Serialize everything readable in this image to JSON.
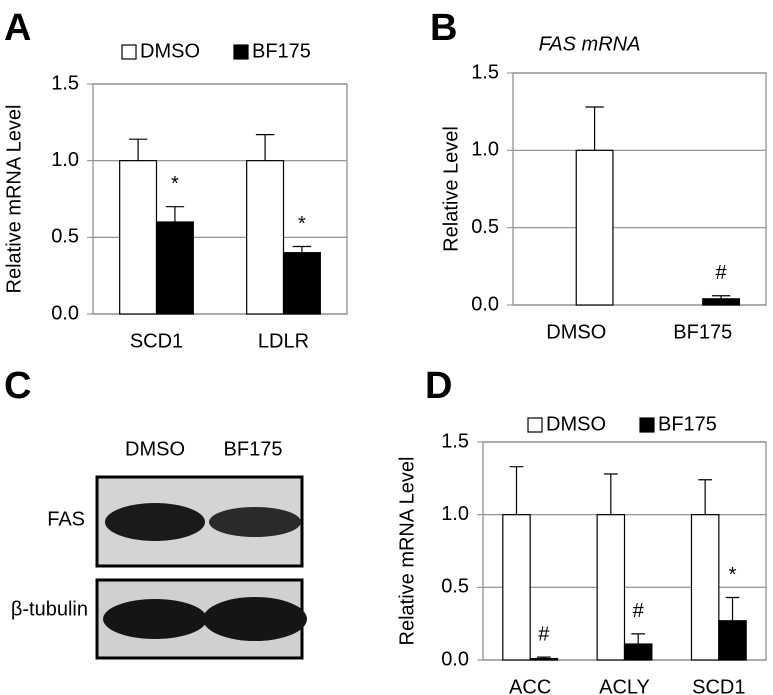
{
  "chart_data": [
    {
      "type": "bar",
      "panel_label": "A",
      "y_label": "Relative mRNA Level",
      "categories": [
        "SCD1",
        "LDLR"
      ],
      "series": [
        {
          "name": "DMSO",
          "color": "#ffffff",
          "values": [
            1.0,
            1.0
          ],
          "errors": [
            0.14,
            0.17
          ]
        },
        {
          "name": "BF175",
          "color": "#000000",
          "values": [
            0.6,
            0.4
          ],
          "errors": [
            0.1,
            0.04
          ],
          "annotations": [
            "*",
            "*"
          ]
        }
      ],
      "ylim": [
        0,
        1.5
      ],
      "yticks": [
        {
          "value": 0,
          "label": "0.0"
        },
        {
          "value": 0.5,
          "label": "0.5"
        },
        {
          "value": 1,
          "label": "1.0"
        },
        {
          "value": 1.5,
          "label": "1.5"
        }
      ],
      "grid": true,
      "legend": "top"
    },
    {
      "type": "bar",
      "panel_label": "B",
      "title": "FAS mRNA",
      "y_label": "Relative Level",
      "categories": [
        "DMSO",
        "BF175"
      ],
      "values": [
        1.0,
        0.04
      ],
      "errors": [
        0.28,
        0.02
      ],
      "colors": [
        "#ffffff",
        "#000000"
      ],
      "annotations": [
        null,
        "#"
      ],
      "ylim": [
        0,
        1.5
      ],
      "yticks": [
        {
          "value": 0,
          "label": "0.0"
        },
        {
          "value": 0.5,
          "label": "0.5"
        },
        {
          "value": 1,
          "label": "1.0"
        },
        {
          "value": 1.5,
          "label": "1.5"
        }
      ],
      "grid": true
    },
    {
      "type": "bar",
      "panel_label": "D",
      "y_label": "Relative mRNA Level",
      "categories": [
        "ACC",
        "ACLY",
        "SCD1"
      ],
      "series": [
        {
          "name": "DMSO",
          "color": "#ffffff",
          "values": [
            1.0,
            1.0,
            1.0
          ],
          "errors": [
            0.33,
            0.28,
            0.24
          ]
        },
        {
          "name": "BF175",
          "color": "#000000",
          "values": [
            0.01,
            0.11,
            0.27
          ],
          "errors": [
            0.01,
            0.07,
            0.16
          ],
          "annotations": [
            "#",
            "#",
            "*"
          ]
        }
      ],
      "ylim": [
        0,
        1.5
      ],
      "yticks": [
        {
          "value": 0,
          "label": "0.0"
        },
        {
          "value": 0.5,
          "label": "0.5"
        },
        {
          "value": 1,
          "label": "1.0"
        },
        {
          "value": 1.5,
          "label": "1.5"
        }
      ],
      "grid": true,
      "legend": "top"
    }
  ],
  "blot": {
    "panel_label": "C",
    "lanes": [
      "DMSO",
      "BF175"
    ],
    "rows": [
      "FAS",
      "β-tubulin"
    ]
  }
}
